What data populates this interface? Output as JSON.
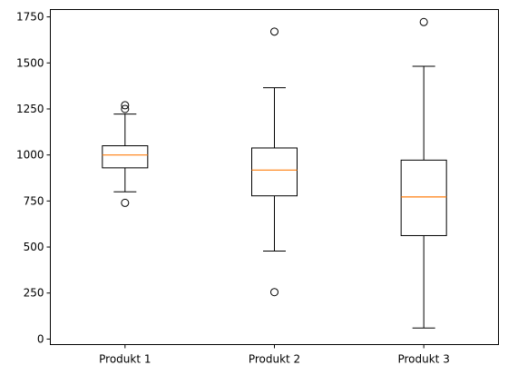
{
  "chart_data": {
    "type": "boxplot",
    "title": "",
    "xlabel": "",
    "ylabel": "",
    "categories": [
      "Produkt 1",
      "Produkt 2",
      "Produkt 3"
    ],
    "ylim": [
      -30,
      1790
    ],
    "yticks": [
      0,
      250,
      500,
      750,
      1000,
      1250,
      1500,
      1750
    ],
    "grid": false,
    "median_color": "#ff7f0e",
    "box_color": "#000000",
    "boxes": [
      {
        "name": "Produkt 1",
        "whisker_low": 800,
        "q1": 930,
        "median": 1000,
        "q3": 1050,
        "whisker_high": 1222,
        "fliers": [
          740,
          1250,
          1270
        ]
      },
      {
        "name": "Produkt 2",
        "whisker_low": 478,
        "q1": 778,
        "median": 918,
        "q3": 1038,
        "whisker_high": 1365,
        "fliers": [
          255,
          1670
        ]
      },
      {
        "name": "Produkt 3",
        "whisker_low": 60,
        "q1": 562,
        "median": 772,
        "q3": 972,
        "whisker_high": 1482,
        "fliers": [
          1722
        ]
      }
    ]
  }
}
